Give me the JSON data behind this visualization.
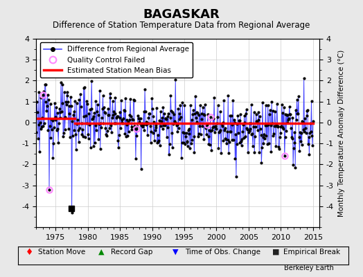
{
  "title": "BAGASKAR",
  "subtitle": "Difference of Station Temperature Data from Regional Average",
  "ylabel": "Monthly Temperature Anomaly Difference (°C)",
  "xlabel_ticks": [
    1975,
    1980,
    1985,
    1990,
    1995,
    2000,
    2005,
    2010,
    2015
  ],
  "ylim": [
    -5,
    4
  ],
  "yticks": [
    -4,
    -3,
    -2,
    -1,
    0,
    1,
    2,
    3,
    4
  ],
  "xmin": 1972,
  "xmax": 2016,
  "bias_line_x": [
    1972,
    1978
  ],
  "bias_value_1": 0.2,
  "bias_value_2": -0.05,
  "bias_break": 1978,
  "empirical_break_x": 1977.5,
  "empirical_break_y": -4.1,
  "background_color": "#e8e8e8",
  "plot_bg_color": "#ffffff",
  "line_color": "#4444ff",
  "bias_color": "#ff0000",
  "qc_color": "#ff88ff",
  "legend_items": [
    "Difference from Regional Average",
    "Quality Control Failed",
    "Estimated Station Mean Bias"
  ],
  "footer_items": [
    "♦ Station Move",
    "▲ Record Gap",
    "▼ Time of Obs. Change",
    "■ Empirical Break"
  ],
  "footer_colors": [
    "#ff0000",
    "#008800",
    "#0000ff",
    "#222222"
  ],
  "watermark": "Berkeley Earth"
}
